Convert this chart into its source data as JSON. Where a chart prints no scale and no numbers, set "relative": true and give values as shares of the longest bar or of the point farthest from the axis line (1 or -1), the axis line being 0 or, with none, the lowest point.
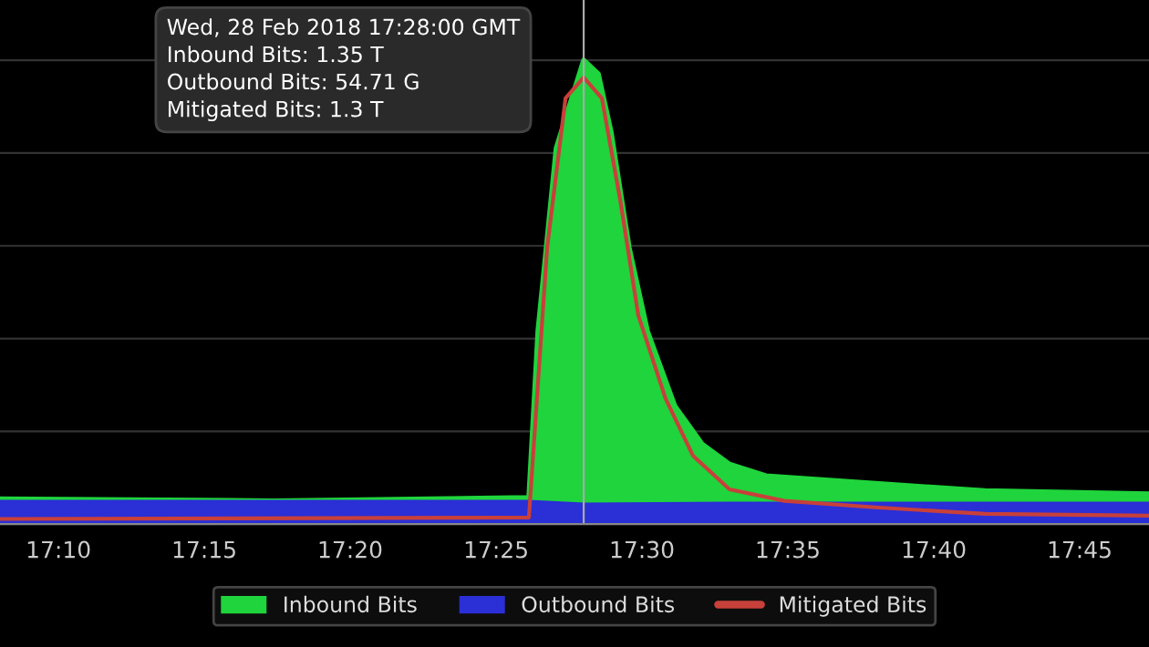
{
  "chart_data": {
    "type": "area",
    "relative": true,
    "annotations": [
      "Wed, 28 Feb 2018 17:28:00 GMT",
      "Inbound Bits: 1.35 T",
      "Outbound Bits: 54.71 G",
      "Mitigated Bits: 1.3 T"
    ],
    "xlim": [
      17.1333,
      17.7896
    ],
    "xticks": [
      {
        "value": 17.1667,
        "label": "17:10"
      },
      {
        "value": 17.25,
        "label": "17:15"
      },
      {
        "value": 17.3333,
        "label": "17:20"
      },
      {
        "value": 17.4167,
        "label": "17:25"
      },
      {
        "value": 17.5,
        "label": "17:30"
      },
      {
        "value": 17.5833,
        "label": "17:35"
      },
      {
        "value": 17.6667,
        "label": "17:40"
      },
      {
        "value": 17.75,
        "label": "17:45"
      }
    ],
    "series": [
      {
        "name": "Inbound Bits",
        "color": "#1fd43c",
        "x": [
          17.1333,
          17.2896,
          17.4354,
          17.4406,
          17.451,
          17.4667,
          17.475,
          17.4823,
          17.4927,
          17.5031,
          17.5188,
          17.5344,
          17.55,
          17.5708,
          17.6125,
          17.6542,
          17.6958,
          17.7896
        ],
        "values": [
          0.054,
          0.05,
          0.057,
          0.416,
          0.81,
          1.0,
          0.971,
          0.846,
          0.595,
          0.416,
          0.254,
          0.172,
          0.129,
          0.104,
          0.093,
          0.082,
          0.072,
          0.065
        ]
      },
      {
        "name": "Outbound Bits",
        "color": "#2b2fd6",
        "x": [
          17.1333,
          17.4354,
          17.4667,
          17.55,
          17.7896
        ],
        "values": [
          0.047,
          0.047,
          0.041,
          0.043,
          0.043
        ]
      },
      {
        "name": "Mitigated Bits",
        "type": "line",
        "color": "#c8403a",
        "x": [
          17.1333,
          17.4354,
          17.4458,
          17.4563,
          17.4667,
          17.4771,
          17.4875,
          17.4979,
          17.5135,
          17.5292,
          17.55,
          17.5813,
          17.6333,
          17.6958,
          17.7896
        ],
        "values": [
          0.011,
          0.014,
          0.595,
          0.918,
          0.963,
          0.918,
          0.7,
          0.45,
          0.27,
          0.147,
          0.075,
          0.05,
          0.036,
          0.022,
          0.018
        ]
      }
    ],
    "ref_lines": [
      {
        "axis": "x",
        "value": 17.4667,
        "color": "#aaaaaa"
      }
    ],
    "grid": "y",
    "legend": "bottom"
  }
}
